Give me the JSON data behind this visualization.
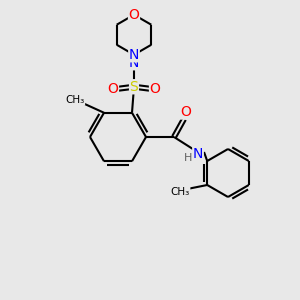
{
  "bg_color": "#e8e8e8",
  "atom_colors": {
    "C": "#000000",
    "N": "#0000ff",
    "O": "#ff0000",
    "S": "#cccc00",
    "H": "#606060"
  },
  "bond_color": "#000000",
  "bond_width": 1.5,
  "figsize": [
    3.0,
    3.0
  ],
  "dpi": 100,
  "xlim": [
    0,
    300
  ],
  "ylim": [
    0,
    300
  ]
}
